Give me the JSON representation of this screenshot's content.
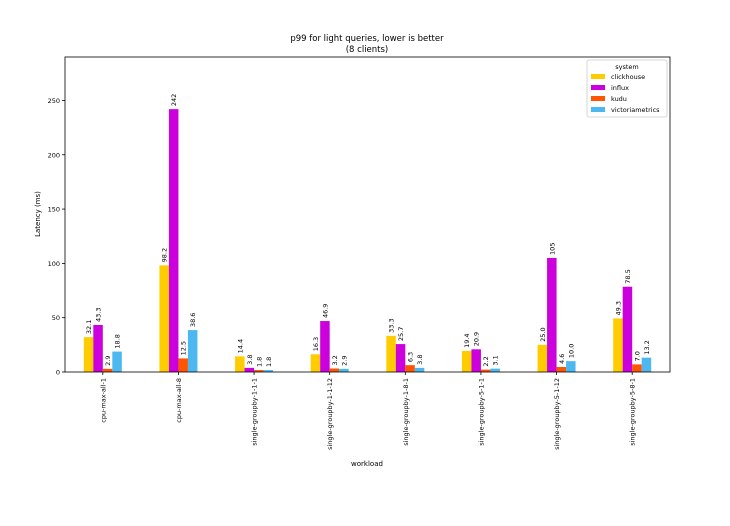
{
  "chart_data": {
    "type": "bar",
    "title": "p99 for light queries, lower is better",
    "subtitle": "(8 clients)",
    "xlabel": "workload",
    "ylabel": "Latency (ms)",
    "ylim": [
      0,
      290
    ],
    "yticks": [
      0,
      50,
      100,
      150,
      200,
      250
    ],
    "grid": false,
    "legend": {
      "title": "system",
      "placement": "top-right"
    },
    "categories": [
      "cpu-max-all-1",
      "cpu-max-all-8",
      "single-groupby-1-1-1",
      "single-groupby-1-1-12",
      "single-groupby-1-8-1",
      "single-groupby-5-1-1",
      "single-groupby-5-1-12",
      "single-groupby-5-8-1"
    ],
    "series": [
      {
        "name": "clickhouse",
        "color": "#FFCC00",
        "values": [
          32.1,
          98.2,
          14.4,
          16.3,
          33.3,
          19.4,
          25.0,
          49.3
        ],
        "labels": [
          "32.1",
          "98.2",
          "14.4",
          "16.3",
          "33.3",
          "19.4",
          "25.0",
          "49.3"
        ]
      },
      {
        "name": "influx",
        "color": "#CC00DD",
        "values": [
          43.3,
          242,
          3.8,
          46.9,
          25.7,
          20.9,
          105,
          78.5
        ],
        "labels": [
          "43.3",
          "242",
          "3.8",
          "46.9",
          "25.7",
          "20.9",
          "105",
          "78.5"
        ]
      },
      {
        "name": "kudu",
        "color": "#FF5500",
        "values": [
          2.9,
          12.5,
          1.8,
          3.2,
          6.3,
          2.2,
          4.6,
          7.0
        ],
        "labels": [
          "2.9",
          "12.5",
          "1.8",
          "3.2",
          "6.3",
          "2.2",
          "4.6",
          "7.0"
        ]
      },
      {
        "name": "victoriametrics",
        "color": "#4DB8F0",
        "values": [
          18.8,
          38.6,
          1.8,
          2.9,
          3.8,
          3.1,
          10.0,
          13.2
        ],
        "labels": [
          "18.8",
          "38.6",
          "1.8",
          "2.9",
          "3.8",
          "3.1",
          "10.0",
          "13.2"
        ]
      }
    ]
  }
}
